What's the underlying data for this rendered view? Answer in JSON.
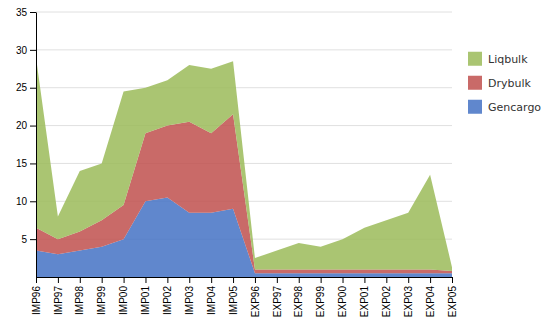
{
  "chart_data": {
    "type": "area",
    "stacked": true,
    "categories": [
      "IMP96",
      "IMP97",
      "IMP98",
      "IMP99",
      "IMP00",
      "IMP01",
      "IMP02",
      "IMP03",
      "IMP04",
      "IMP05",
      "EXP96",
      "EXP97",
      "EXP98",
      "EXP99",
      "EXP00",
      "EXP01",
      "EXP02",
      "EXP03",
      "EXP04",
      "EXP05"
    ],
    "series": [
      {
        "name": "Gencargo",
        "color": "#4472C4",
        "values": [
          3.5,
          3.0,
          3.5,
          4.0,
          5.0,
          10.0,
          10.5,
          8.5,
          8.5,
          9.0,
          0.5,
          0.5,
          0.5,
          0.5,
          0.5,
          0.5,
          0.5,
          0.5,
          0.5,
          0.5
        ]
      },
      {
        "name": "Drybulk",
        "color": "#C0504D",
        "values": [
          3.0,
          2.0,
          2.5,
          3.5,
          4.5,
          9.0,
          9.5,
          12.0,
          10.5,
          12.5,
          0.5,
          0.5,
          0.5,
          0.5,
          0.5,
          0.5,
          0.5,
          0.5,
          0.5,
          0.3
        ]
      },
      {
        "name": "Liqbulk",
        "color": "#9BBB59",
        "values": [
          22.5,
          3.0,
          8.0,
          7.5,
          15.0,
          6.0,
          6.0,
          7.5,
          8.5,
          7.0,
          1.5,
          2.5,
          3.5,
          3.0,
          4.0,
          5.5,
          6.5,
          7.5,
          12.5,
          0.5
        ]
      }
    ],
    "ylim": [
      0,
      35
    ],
    "yticks": [
      5,
      10,
      15,
      20,
      25,
      30,
      35
    ],
    "grid": true,
    "legend": "right"
  }
}
